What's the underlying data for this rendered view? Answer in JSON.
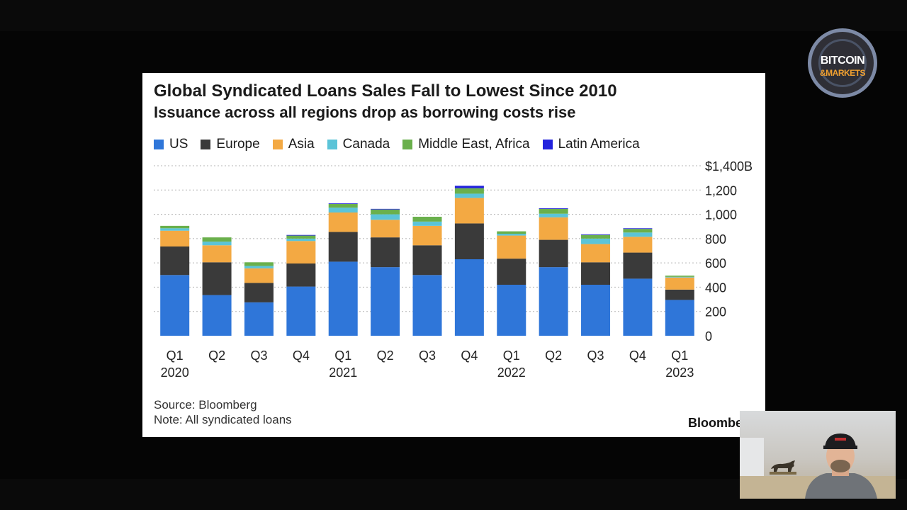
{
  "chart_data": {
    "type": "bar",
    "stacked": true,
    "title": "Global Syndicated Loans Sales Fall to Lowest Since 2010",
    "subtitle": "Issuance across all regions drop as borrowing costs rise",
    "categories": [
      "Q1 2020",
      "Q2",
      "Q3",
      "Q4",
      "Q1 2021",
      "Q2",
      "Q3",
      "Q4",
      "Q1 2022",
      "Q2",
      "Q3",
      "Q4",
      "Q1 2023"
    ],
    "x_tick_labels": [
      {
        "quarter": "Q1",
        "year": "2020"
      },
      {
        "quarter": "Q2",
        "year": ""
      },
      {
        "quarter": "Q3",
        "year": ""
      },
      {
        "quarter": "Q4",
        "year": ""
      },
      {
        "quarter": "Q1",
        "year": "2021"
      },
      {
        "quarter": "Q2",
        "year": ""
      },
      {
        "quarter": "Q3",
        "year": ""
      },
      {
        "quarter": "Q4",
        "year": ""
      },
      {
        "quarter": "Q1",
        "year": "2022"
      },
      {
        "quarter": "Q2",
        "year": ""
      },
      {
        "quarter": "Q3",
        "year": ""
      },
      {
        "quarter": "Q4",
        "year": ""
      },
      {
        "quarter": "Q1",
        "year": "2023"
      }
    ],
    "series": [
      {
        "name": "US",
        "color": "#2f76d9",
        "values": [
          500,
          335,
          275,
          405,
          610,
          565,
          500,
          630,
          420,
          565,
          420,
          470,
          295
        ]
      },
      {
        "name": "Europe",
        "color": "#3a3a3a",
        "values": [
          235,
          270,
          160,
          190,
          245,
          245,
          245,
          295,
          215,
          225,
          185,
          215,
          85
        ]
      },
      {
        "name": "Asia",
        "color": "#f3a943",
        "values": [
          130,
          140,
          120,
          185,
          160,
          145,
          160,
          210,
          190,
          185,
          150,
          130,
          100
        ]
      },
      {
        "name": "Canada",
        "color": "#5bc4d8",
        "values": [
          20,
          30,
          20,
          20,
          40,
          45,
          35,
          35,
          15,
          30,
          45,
          35,
          5
        ]
      },
      {
        "name": "Middle East, Africa",
        "color": "#6ab04c",
        "values": [
          20,
          35,
          30,
          25,
          30,
          40,
          40,
          45,
          20,
          40,
          30,
          30,
          10
        ]
      },
      {
        "name": "Latin America",
        "color": "#2222dd",
        "values": [
          0,
          0,
          0,
          5,
          5,
          5,
          0,
          20,
          0,
          5,
          5,
          5,
          0
        ]
      }
    ],
    "y_ticks": [
      0,
      200,
      400,
      600,
      800,
      1000,
      1200,
      1400
    ],
    "y_tick_labels": [
      "0",
      "200",
      "400",
      "600",
      "800",
      "1,000",
      "1,200",
      "$1,400B"
    ],
    "ylim": [
      0,
      1400
    ],
    "grid": true,
    "legend_position": "top-left",
    "y_axis_position": "right"
  },
  "footer": {
    "source": "Source: Bloomberg",
    "note": "Note: All syndicated loans",
    "brand": "Bloomberg"
  },
  "overlay": {
    "logo_line1": "BITCOIN",
    "logo_line2": "&MARKETS"
  }
}
